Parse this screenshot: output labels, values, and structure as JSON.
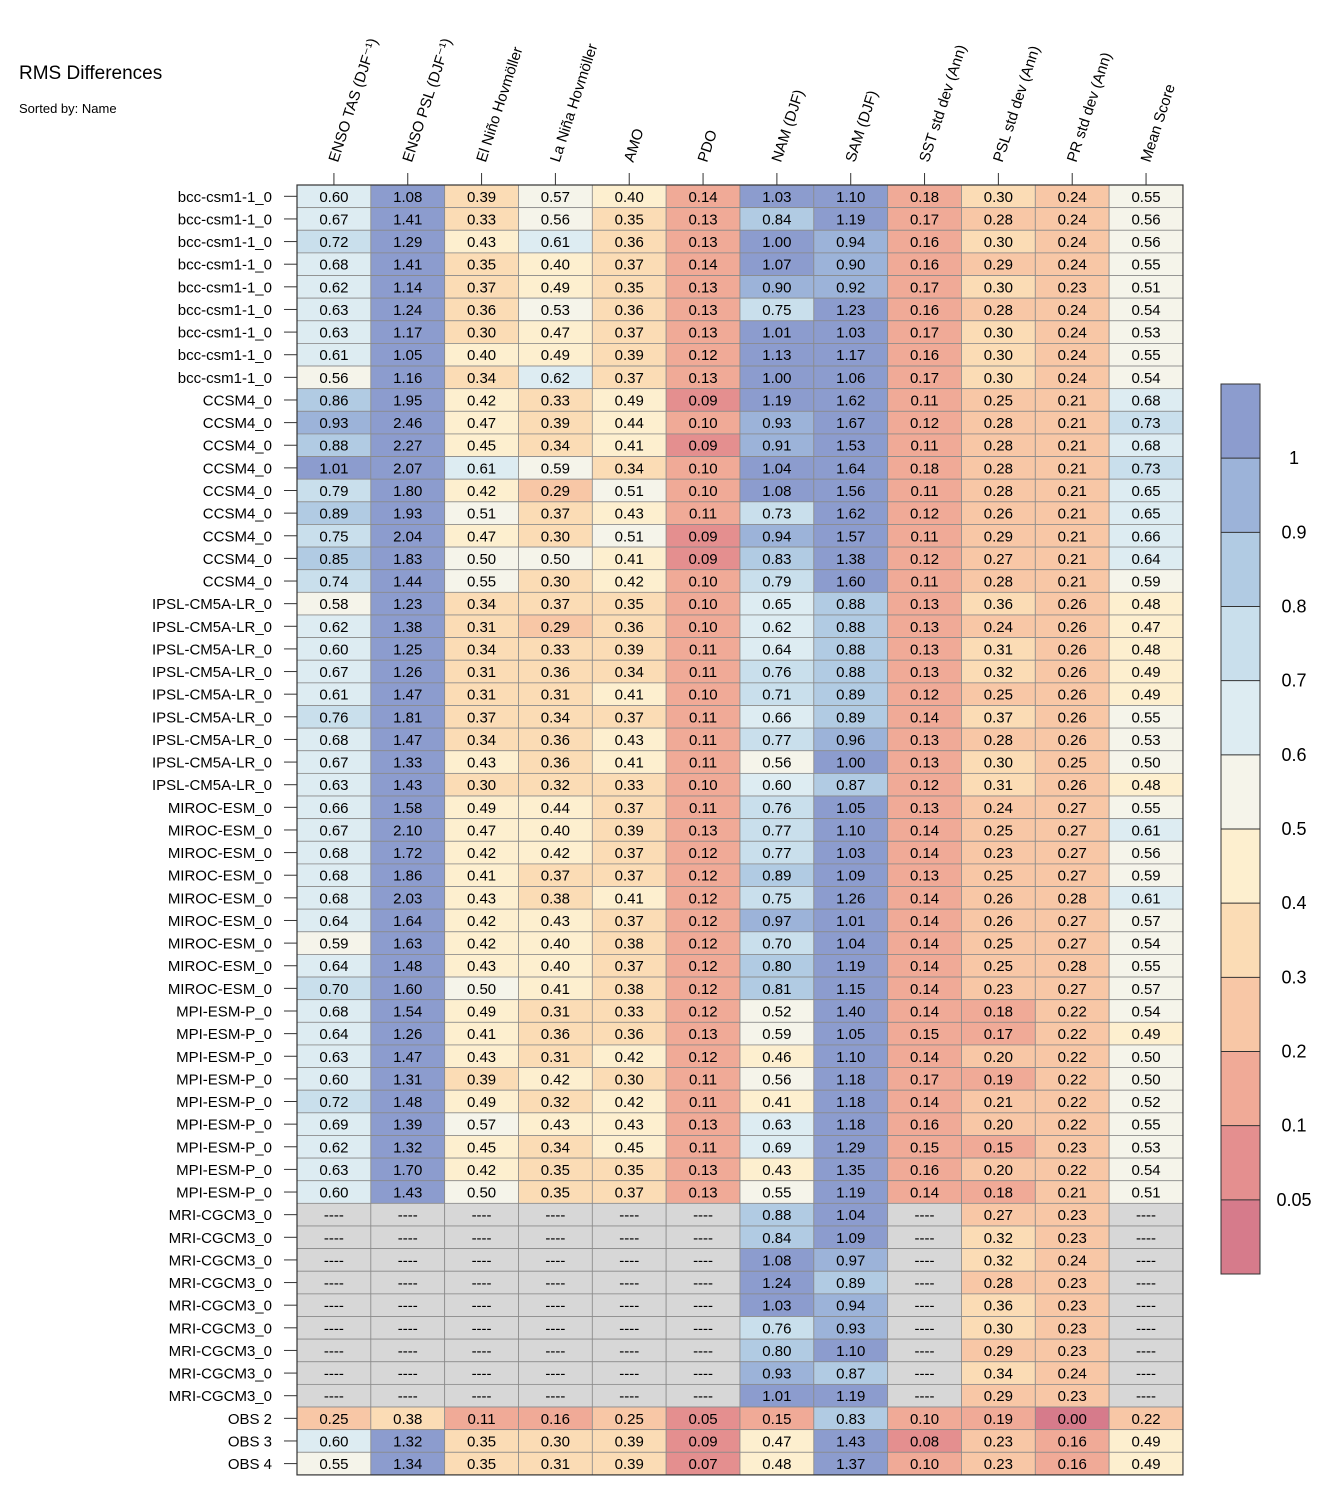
{
  "chart_data": {
    "type": "heatmap",
    "title": "RMS Differences",
    "subtitle": "Sorted by: Name",
    "missing_label": "----",
    "columns": [
      "ENSO TAS (DJF⁻¹)",
      "ENSO PSL (DJF⁻¹)",
      "El Niño Hovmöller",
      "La Niña Hovmöller",
      "AMO",
      "PDO",
      "NAM (DJF)",
      "SAM (DJF)",
      "SST std dev (Ann)",
      "PSL std dev (Ann)",
      "PR std dev (Ann)",
      "Mean Score"
    ],
    "rows": [
      {
        "name": "bcc-csm1-1_0",
        "values": [
          0.6,
          1.08,
          0.39,
          0.57,
          0.4,
          0.14,
          1.03,
          1.1,
          0.18,
          0.3,
          0.24,
          0.55
        ]
      },
      {
        "name": "bcc-csm1-1_0",
        "values": [
          0.67,
          1.41,
          0.33,
          0.56,
          0.35,
          0.13,
          0.84,
          1.19,
          0.17,
          0.28,
          0.24,
          0.56
        ]
      },
      {
        "name": "bcc-csm1-1_0",
        "values": [
          0.72,
          1.29,
          0.43,
          0.61,
          0.36,
          0.13,
          1.0,
          0.94,
          0.16,
          0.3,
          0.24,
          0.56
        ]
      },
      {
        "name": "bcc-csm1-1_0",
        "values": [
          0.68,
          1.41,
          0.35,
          0.4,
          0.37,
          0.14,
          1.07,
          0.9,
          0.16,
          0.29,
          0.24,
          0.55
        ]
      },
      {
        "name": "bcc-csm1-1_0",
        "values": [
          0.62,
          1.14,
          0.37,
          0.49,
          0.35,
          0.13,
          0.9,
          0.92,
          0.17,
          0.3,
          0.23,
          0.51
        ]
      },
      {
        "name": "bcc-csm1-1_0",
        "values": [
          0.63,
          1.24,
          0.36,
          0.53,
          0.36,
          0.13,
          0.75,
          1.23,
          0.16,
          0.28,
          0.24,
          0.54
        ]
      },
      {
        "name": "bcc-csm1-1_0",
        "values": [
          0.63,
          1.17,
          0.3,
          0.47,
          0.37,
          0.13,
          1.01,
          1.03,
          0.17,
          0.3,
          0.24,
          0.53
        ]
      },
      {
        "name": "bcc-csm1-1_0",
        "values": [
          0.61,
          1.05,
          0.4,
          0.49,
          0.39,
          0.12,
          1.13,
          1.17,
          0.16,
          0.3,
          0.24,
          0.55
        ]
      },
      {
        "name": "bcc-csm1-1_0",
        "values": [
          0.56,
          1.16,
          0.34,
          0.62,
          0.37,
          0.13,
          1.0,
          1.06,
          0.17,
          0.3,
          0.24,
          0.54
        ]
      },
      {
        "name": "CCSM4_0",
        "values": [
          0.86,
          1.95,
          0.42,
          0.33,
          0.49,
          0.09,
          1.19,
          1.62,
          0.11,
          0.25,
          0.21,
          0.68
        ]
      },
      {
        "name": "CCSM4_0",
        "values": [
          0.93,
          2.46,
          0.47,
          0.39,
          0.44,
          0.1,
          0.93,
          1.67,
          0.12,
          0.28,
          0.21,
          0.73
        ]
      },
      {
        "name": "CCSM4_0",
        "values": [
          0.88,
          2.27,
          0.45,
          0.34,
          0.41,
          0.09,
          0.91,
          1.53,
          0.11,
          0.28,
          0.21,
          0.68
        ]
      },
      {
        "name": "CCSM4_0",
        "values": [
          1.01,
          2.07,
          0.61,
          0.59,
          0.34,
          0.1,
          1.04,
          1.64,
          0.18,
          0.28,
          0.21,
          0.73
        ]
      },
      {
        "name": "CCSM4_0",
        "values": [
          0.79,
          1.8,
          0.42,
          0.29,
          0.51,
          0.1,
          1.08,
          1.56,
          0.11,
          0.28,
          0.21,
          0.65
        ]
      },
      {
        "name": "CCSM4_0",
        "values": [
          0.89,
          1.93,
          0.51,
          0.37,
          0.43,
          0.11,
          0.73,
          1.62,
          0.12,
          0.26,
          0.21,
          0.65
        ]
      },
      {
        "name": "CCSM4_0",
        "values": [
          0.75,
          2.04,
          0.47,
          0.3,
          0.51,
          0.09,
          0.94,
          1.57,
          0.11,
          0.29,
          0.21,
          0.66
        ]
      },
      {
        "name": "CCSM4_0",
        "values": [
          0.85,
          1.83,
          0.5,
          0.5,
          0.41,
          0.09,
          0.83,
          1.38,
          0.12,
          0.27,
          0.21,
          0.64
        ]
      },
      {
        "name": "CCSM4_0",
        "values": [
          0.74,
          1.44,
          0.55,
          0.3,
          0.42,
          0.1,
          0.79,
          1.6,
          0.11,
          0.28,
          0.21,
          0.59
        ]
      },
      {
        "name": "IPSL-CM5A-LR_0",
        "values": [
          0.58,
          1.23,
          0.34,
          0.37,
          0.35,
          0.1,
          0.65,
          0.88,
          0.13,
          0.36,
          0.26,
          0.48
        ]
      },
      {
        "name": "IPSL-CM5A-LR_0",
        "values": [
          0.62,
          1.38,
          0.31,
          0.29,
          0.36,
          0.1,
          0.62,
          0.88,
          0.13,
          0.24,
          0.26,
          0.47
        ]
      },
      {
        "name": "IPSL-CM5A-LR_0",
        "values": [
          0.6,
          1.25,
          0.34,
          0.33,
          0.39,
          0.11,
          0.64,
          0.88,
          0.13,
          0.31,
          0.26,
          0.48
        ]
      },
      {
        "name": "IPSL-CM5A-LR_0",
        "values": [
          0.67,
          1.26,
          0.31,
          0.36,
          0.34,
          0.11,
          0.76,
          0.88,
          0.13,
          0.32,
          0.26,
          0.49
        ]
      },
      {
        "name": "IPSL-CM5A-LR_0",
        "values": [
          0.61,
          1.47,
          0.31,
          0.31,
          0.41,
          0.1,
          0.71,
          0.89,
          0.12,
          0.25,
          0.26,
          0.49
        ]
      },
      {
        "name": "IPSL-CM5A-LR_0",
        "values": [
          0.76,
          1.81,
          0.37,
          0.34,
          0.37,
          0.11,
          0.66,
          0.89,
          0.14,
          0.37,
          0.26,
          0.55
        ]
      },
      {
        "name": "IPSL-CM5A-LR_0",
        "values": [
          0.68,
          1.47,
          0.34,
          0.36,
          0.43,
          0.11,
          0.77,
          0.96,
          0.13,
          0.28,
          0.26,
          0.53
        ]
      },
      {
        "name": "IPSL-CM5A-LR_0",
        "values": [
          0.67,
          1.33,
          0.43,
          0.36,
          0.41,
          0.11,
          0.56,
          1.0,
          0.13,
          0.3,
          0.25,
          0.5
        ]
      },
      {
        "name": "IPSL-CM5A-LR_0",
        "values": [
          0.63,
          1.43,
          0.3,
          0.32,
          0.33,
          0.1,
          0.6,
          0.87,
          0.12,
          0.31,
          0.26,
          0.48
        ]
      },
      {
        "name": "MIROC-ESM_0",
        "values": [
          0.66,
          1.58,
          0.49,
          0.44,
          0.37,
          0.11,
          0.76,
          1.05,
          0.13,
          0.24,
          0.27,
          0.55
        ]
      },
      {
        "name": "MIROC-ESM_0",
        "values": [
          0.67,
          2.1,
          0.47,
          0.4,
          0.39,
          0.13,
          0.77,
          1.1,
          0.14,
          0.25,
          0.27,
          0.61
        ]
      },
      {
        "name": "MIROC-ESM_0",
        "values": [
          0.68,
          1.72,
          0.42,
          0.42,
          0.37,
          0.12,
          0.77,
          1.03,
          0.14,
          0.23,
          0.27,
          0.56
        ]
      },
      {
        "name": "MIROC-ESM_0",
        "values": [
          0.68,
          1.86,
          0.41,
          0.37,
          0.37,
          0.12,
          0.89,
          1.09,
          0.13,
          0.25,
          0.27,
          0.59
        ]
      },
      {
        "name": "MIROC-ESM_0",
        "values": [
          0.68,
          2.03,
          0.43,
          0.38,
          0.41,
          0.12,
          0.75,
          1.26,
          0.14,
          0.26,
          0.28,
          0.61
        ]
      },
      {
        "name": "MIROC-ESM_0",
        "values": [
          0.64,
          1.64,
          0.42,
          0.43,
          0.37,
          0.12,
          0.97,
          1.01,
          0.14,
          0.26,
          0.27,
          0.57
        ]
      },
      {
        "name": "MIROC-ESM_0",
        "values": [
          0.59,
          1.63,
          0.42,
          0.4,
          0.38,
          0.12,
          0.7,
          1.04,
          0.14,
          0.25,
          0.27,
          0.54
        ]
      },
      {
        "name": "MIROC-ESM_0",
        "values": [
          0.64,
          1.48,
          0.43,
          0.4,
          0.37,
          0.12,
          0.8,
          1.19,
          0.14,
          0.25,
          0.28,
          0.55
        ]
      },
      {
        "name": "MIROC-ESM_0",
        "values": [
          0.7,
          1.6,
          0.5,
          0.41,
          0.38,
          0.12,
          0.81,
          1.15,
          0.14,
          0.23,
          0.27,
          0.57
        ]
      },
      {
        "name": "MPI-ESM-P_0",
        "values": [
          0.68,
          1.54,
          0.49,
          0.31,
          0.33,
          0.12,
          0.52,
          1.4,
          0.14,
          0.18,
          0.22,
          0.54
        ]
      },
      {
        "name": "MPI-ESM-P_0",
        "values": [
          0.64,
          1.26,
          0.41,
          0.36,
          0.36,
          0.13,
          0.59,
          1.05,
          0.15,
          0.17,
          0.22,
          0.49
        ]
      },
      {
        "name": "MPI-ESM-P_0",
        "values": [
          0.63,
          1.47,
          0.43,
          0.31,
          0.42,
          0.12,
          0.46,
          1.1,
          0.14,
          0.2,
          0.22,
          0.5
        ]
      },
      {
        "name": "MPI-ESM-P_0",
        "values": [
          0.6,
          1.31,
          0.39,
          0.42,
          0.3,
          0.11,
          0.56,
          1.18,
          0.17,
          0.19,
          0.22,
          0.5
        ]
      },
      {
        "name": "MPI-ESM-P_0",
        "values": [
          0.72,
          1.48,
          0.49,
          0.32,
          0.42,
          0.11,
          0.41,
          1.18,
          0.14,
          0.21,
          0.22,
          0.52
        ]
      },
      {
        "name": "MPI-ESM-P_0",
        "values": [
          0.69,
          1.39,
          0.57,
          0.43,
          0.43,
          0.13,
          0.63,
          1.18,
          0.16,
          0.2,
          0.22,
          0.55
        ]
      },
      {
        "name": "MPI-ESM-P_0",
        "values": [
          0.62,
          1.32,
          0.45,
          0.34,
          0.45,
          0.11,
          0.69,
          1.29,
          0.15,
          0.15,
          0.23,
          0.53
        ]
      },
      {
        "name": "MPI-ESM-P_0",
        "values": [
          0.63,
          1.7,
          0.42,
          0.35,
          0.35,
          0.13,
          0.43,
          1.35,
          0.16,
          0.2,
          0.22,
          0.54
        ]
      },
      {
        "name": "MPI-ESM-P_0",
        "values": [
          0.6,
          1.43,
          0.5,
          0.35,
          0.37,
          0.13,
          0.55,
          1.19,
          0.14,
          0.18,
          0.21,
          0.51
        ]
      },
      {
        "name": "MRI-CGCM3_0",
        "values": [
          null,
          null,
          null,
          null,
          null,
          null,
          0.88,
          1.04,
          null,
          0.27,
          0.23,
          null
        ]
      },
      {
        "name": "MRI-CGCM3_0",
        "values": [
          null,
          null,
          null,
          null,
          null,
          null,
          0.84,
          1.09,
          null,
          0.32,
          0.23,
          null
        ]
      },
      {
        "name": "MRI-CGCM3_0",
        "values": [
          null,
          null,
          null,
          null,
          null,
          null,
          1.08,
          0.97,
          null,
          0.32,
          0.24,
          null
        ]
      },
      {
        "name": "MRI-CGCM3_0",
        "values": [
          null,
          null,
          null,
          null,
          null,
          null,
          1.24,
          0.89,
          null,
          0.28,
          0.23,
          null
        ]
      },
      {
        "name": "MRI-CGCM3_0",
        "values": [
          null,
          null,
          null,
          null,
          null,
          null,
          1.03,
          0.94,
          null,
          0.36,
          0.23,
          null
        ]
      },
      {
        "name": "MRI-CGCM3_0",
        "values": [
          null,
          null,
          null,
          null,
          null,
          null,
          0.76,
          0.93,
          null,
          0.3,
          0.23,
          null
        ]
      },
      {
        "name": "MRI-CGCM3_0",
        "values": [
          null,
          null,
          null,
          null,
          null,
          null,
          0.8,
          1.1,
          null,
          0.29,
          0.23,
          null
        ]
      },
      {
        "name": "MRI-CGCM3_0",
        "values": [
          null,
          null,
          null,
          null,
          null,
          null,
          0.93,
          0.87,
          null,
          0.34,
          0.24,
          null
        ]
      },
      {
        "name": "MRI-CGCM3_0",
        "values": [
          null,
          null,
          null,
          null,
          null,
          null,
          1.01,
          1.19,
          null,
          0.29,
          0.23,
          null
        ]
      },
      {
        "name": "OBS 2",
        "values": [
          0.25,
          0.38,
          0.11,
          0.16,
          0.25,
          0.05,
          0.15,
          0.83,
          0.1,
          0.19,
          0.0,
          0.22
        ]
      },
      {
        "name": "OBS 3",
        "values": [
          0.6,
          1.32,
          0.35,
          0.3,
          0.39,
          0.09,
          0.47,
          1.43,
          0.08,
          0.23,
          0.16,
          0.49
        ]
      },
      {
        "name": "OBS 4",
        "values": [
          0.55,
          1.34,
          0.35,
          0.31,
          0.39,
          0.07,
          0.48,
          1.37,
          0.1,
          0.23,
          0.16,
          0.49
        ]
      }
    ],
    "colorbar": {
      "levels": [
        0.05,
        0.1,
        0.2,
        0.3,
        0.4,
        0.5,
        0.6,
        0.7,
        0.8,
        0.9,
        1
      ],
      "tick_labels": [
        "0.05",
        "0.1",
        "0.2",
        "0.3",
        "0.4",
        "0.5",
        "0.6",
        "0.7",
        "0.8",
        "0.9",
        "1"
      ],
      "colors": [
        "#d67b8b",
        "#e48f8f",
        "#f0aa97",
        "#f8c7a6",
        "#fbdcb5",
        "#fdefcf",
        "#f5f4ea",
        "#ddecf2",
        "#c9dfec",
        "#b1cbe3",
        "#9cb3d9",
        "#8c9cce"
      ],
      "missing_color": "#d7d7d7"
    }
  }
}
